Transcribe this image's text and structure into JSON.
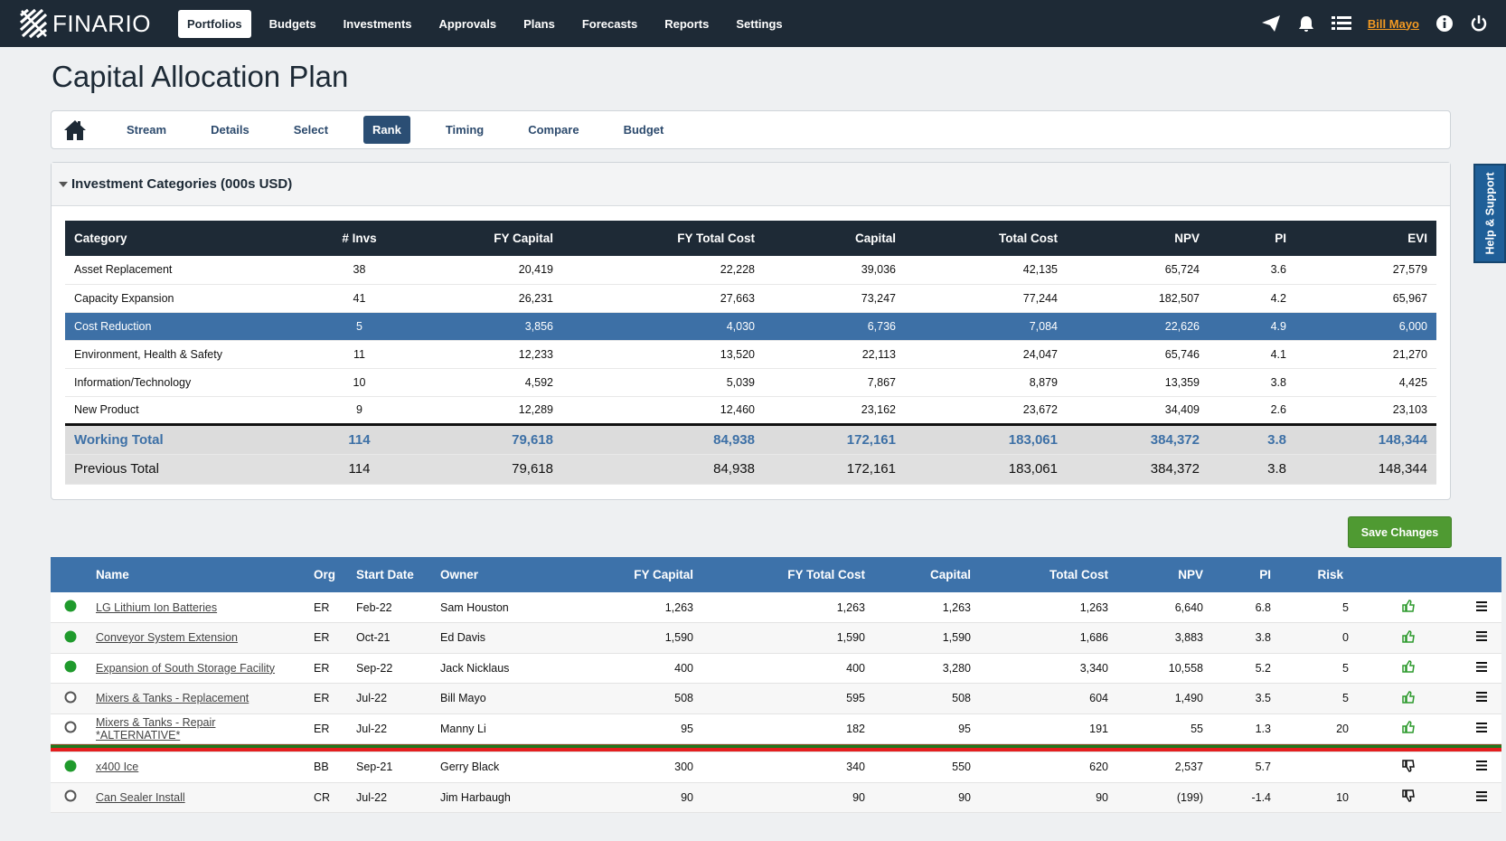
{
  "nav": {
    "brand": "FINARIO",
    "items": [
      "Portfolios",
      "Budgets",
      "Investments",
      "Approvals",
      "Plans",
      "Forecasts",
      "Reports",
      "Settings"
    ],
    "active": 0,
    "user": "Bill Mayo"
  },
  "page": {
    "title": "Capital Allocation Plan",
    "tabs": [
      "Stream",
      "Details",
      "Select",
      "Rank",
      "Timing",
      "Compare",
      "Budget"
    ],
    "active_tab": 3
  },
  "categories": {
    "title": "Investment Categories (000s USD)",
    "columns": [
      "Category",
      "# Invs",
      "FY Capital",
      "FY Total Cost",
      "Capital",
      "Total Cost",
      "NPV",
      "PI",
      "EVI"
    ],
    "rows": [
      [
        "Asset Replacement",
        "38",
        "20,419",
        "22,228",
        "39,036",
        "42,135",
        "65,724",
        "3.6",
        "27,579"
      ],
      [
        "Capacity Expansion",
        "41",
        "26,231",
        "27,663",
        "73,247",
        "77,244",
        "182,507",
        "4.2",
        "65,967"
      ],
      [
        "Cost Reduction",
        "5",
        "3,856",
        "4,030",
        "6,736",
        "7,084",
        "22,626",
        "4.9",
        "6,000"
      ],
      [
        "Environment, Health & Safety",
        "11",
        "12,233",
        "13,520",
        "22,113",
        "24,047",
        "65,746",
        "4.1",
        "21,270"
      ],
      [
        "Information/Technology",
        "10",
        "4,592",
        "5,039",
        "7,867",
        "8,879",
        "13,359",
        "3.8",
        "4,425"
      ],
      [
        "New Product",
        "9",
        "12,289",
        "12,460",
        "23,162",
        "23,672",
        "34,409",
        "2.6",
        "23,103"
      ]
    ],
    "highlight_row": 2,
    "working_total": [
      "Working Total",
      "114",
      "79,618",
      "84,938",
      "172,161",
      "183,061",
      "384,372",
      "3.8",
      "148,344"
    ],
    "previous_total": [
      "Previous Total",
      "114",
      "79,618",
      "84,938",
      "172,161",
      "183,061",
      "384,372",
      "3.8",
      "148,344"
    ]
  },
  "save_button": "Save Changes",
  "investments": {
    "columns": [
      "Name",
      "Org",
      "Start Date",
      "Owner",
      "FY Capital",
      "FY Total Cost",
      "Capital",
      "Total Cost",
      "NPV",
      "PI",
      "Risk"
    ],
    "cutoff_after": 5,
    "rows": [
      {
        "funded": true,
        "vote": "up",
        "cells": [
          "LG Lithium Ion Batteries",
          "ER",
          "Feb-22",
          "Sam Houston",
          "1,263",
          "1,263",
          "1,263",
          "1,263",
          "6,640",
          "6.8",
          "5"
        ]
      },
      {
        "funded": true,
        "vote": "up",
        "cells": [
          "Conveyor System Extension",
          "ER",
          "Oct-21",
          "Ed Davis",
          "1,590",
          "1,590",
          "1,590",
          "1,686",
          "3,883",
          "3.8",
          "0"
        ]
      },
      {
        "funded": true,
        "vote": "up",
        "cells": [
          "Expansion of South Storage Facility",
          "ER",
          "Sep-22",
          "Jack Nicklaus",
          "400",
          "400",
          "3,280",
          "3,340",
          "10,558",
          "5.2",
          "5"
        ]
      },
      {
        "funded": false,
        "vote": "up",
        "cells": [
          "Mixers & Tanks - Replacement",
          "ER",
          "Jul-22",
          "Bill Mayo",
          "508",
          "595",
          "508",
          "604",
          "1,490",
          "3.5",
          "5"
        ]
      },
      {
        "funded": false,
        "vote": "up",
        "cells": [
          "Mixers & Tanks - Repair *ALTERNATIVE*",
          "ER",
          "Jul-22",
          "Manny Li",
          "95",
          "182",
          "95",
          "191",
          "55",
          "1.3",
          "20"
        ]
      },
      {
        "funded": true,
        "vote": "down",
        "cells": [
          "x400 Ice",
          "BB",
          "Sep-21",
          "Gerry Black",
          "300",
          "340",
          "550",
          "620",
          "2,537",
          "5.7",
          null
        ]
      },
      {
        "funded": false,
        "vote": "down",
        "cells": [
          "Can Sealer Install",
          "CR",
          "Jul-22",
          "Jim Harbaugh",
          "90",
          "90",
          "90",
          "90",
          "(199)",
          "-1.4",
          "10"
        ]
      }
    ]
  },
  "help": "Help & Support"
}
